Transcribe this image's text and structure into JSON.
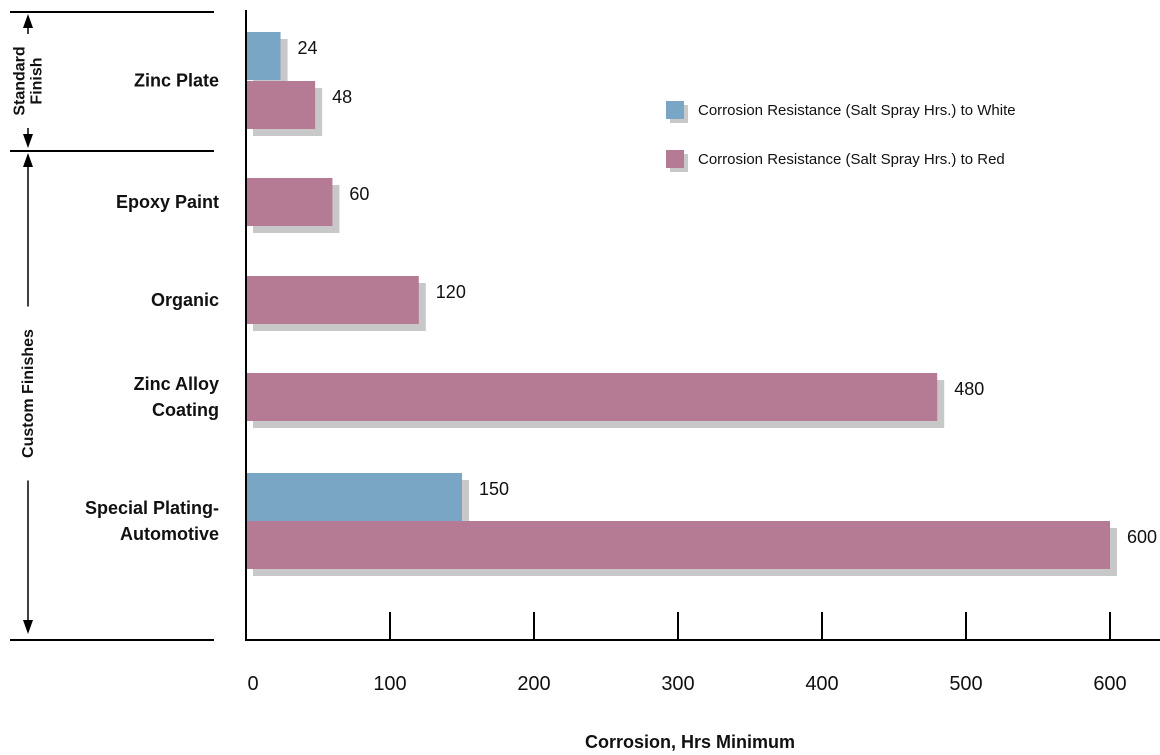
{
  "chart_data": {
    "type": "bar",
    "orientation": "horizontal",
    "categories": [
      [
        "Zinc Plate"
      ],
      [
        "Epoxy Paint"
      ],
      [
        "Organic"
      ],
      [
        "Zinc Alloy",
        "Coating"
      ],
      [
        "Special Plating-",
        "Automotive"
      ]
    ],
    "series": [
      {
        "name": "Corrosion Resistance (Salt Spray Hrs.) to White",
        "color": "#7aa6c6",
        "values": [
          24,
          null,
          null,
          null,
          150
        ]
      },
      {
        "name": "Corrosion Resistance (Salt Spray Hrs.) to Red",
        "color": "#b57a94",
        "values": [
          48,
          60,
          120,
          480,
          600
        ]
      }
    ],
    "xlabel": "Corrosion, Hrs Minimum",
    "xlim": [
      0,
      600
    ],
    "xticks": [
      0,
      100,
      200,
      300,
      400,
      500,
      600
    ],
    "legend_position": "top-right",
    "grid": false,
    "shadow_color": "#c8c8c8",
    "groups": [
      {
        "lines": [
          "Standard",
          "Finish"
        ],
        "categories": [
          0
        ]
      },
      {
        "lines": [
          "Custom Finishes"
        ],
        "categories": [
          1,
          2,
          3,
          4
        ]
      }
    ]
  }
}
